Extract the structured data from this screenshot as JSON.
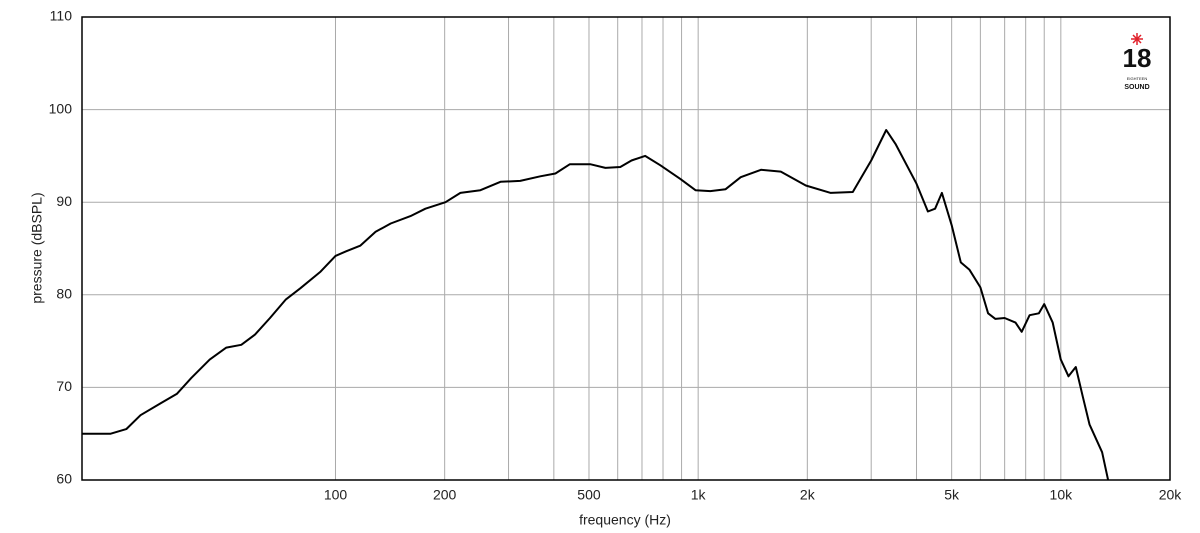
{
  "chart_data": {
    "type": "line",
    "x_label": "frequency (Hz)",
    "y_label": "pressure (dBSPL)",
    "x_scale": "log",
    "xlim": [
      20,
      20000
    ],
    "ylim": [
      60,
      110
    ],
    "xticks": [
      100,
      200,
      500,
      {
        "value": 1000,
        "label": "1k"
      },
      {
        "value": 2000,
        "label": "2k"
      },
      {
        "value": 5000,
        "label": "5k"
      },
      {
        "value": 10000,
        "label": "10k"
      },
      {
        "value": 20000,
        "label": "20k"
      }
    ],
    "minor_xticks": [
      300,
      400,
      600,
      700,
      800,
      900,
      3000,
      4000,
      6000,
      7000,
      8000,
      9000
    ],
    "yticks": [
      60,
      70,
      80,
      90,
      100,
      110
    ],
    "grid": true,
    "color": "#000000",
    "logo_text": "18",
    "logo_subtext": [
      "EIGHTEEN",
      "SOUND"
    ],
    "x": [
      20,
      24,
      26.5,
      29,
      33,
      36.5,
      40,
      45,
      50,
      55,
      60,
      66,
      73,
      80,
      91,
      100,
      107,
      117,
      129,
      142,
      161,
      177,
      201,
      221,
      251,
      285,
      323,
      367,
      404,
      443,
      504,
      555,
      610,
      655,
      714,
      786,
      894,
      983,
      1080,
      1190,
      1310,
      1490,
      1690,
      1980,
      2320,
      2670,
      3000,
      3300,
      3500,
      4000,
      4300,
      4500,
      4700,
      5000,
      5300,
      5600,
      6000,
      6300,
      6600,
      7000,
      7500,
      7800,
      8200,
      8700,
      9000,
      9500,
      10000,
      10500,
      11000,
      11500,
      12000,
      13000,
      13500
    ],
    "values": [
      65,
      65,
      65.5,
      67,
      68.3,
      69.3,
      71,
      73,
      74.3,
      74.6,
      75.7,
      77.5,
      79.5,
      80.7,
      82.5,
      84.2,
      84.7,
      85.3,
      86.8,
      87.7,
      88.5,
      89.3,
      90,
      91,
      91.3,
      92.2,
      92.3,
      92.8,
      93.1,
      94.1,
      94.1,
      93.7,
      93.8,
      94.5,
      95,
      94,
      92.5,
      91.3,
      91.2,
      91.4,
      92.7,
      93.5,
      93.3,
      91.8,
      91,
      91.1,
      94.5,
      97.8,
      96.3,
      92,
      89,
      89.3,
      91,
      87.5,
      83.5,
      82.7,
      80.8,
      78,
      77.4,
      77.5,
      77,
      76,
      77.8,
      78,
      79,
      77,
      73,
      71.2,
      72.2,
      69,
      66,
      63,
      60
    ]
  }
}
